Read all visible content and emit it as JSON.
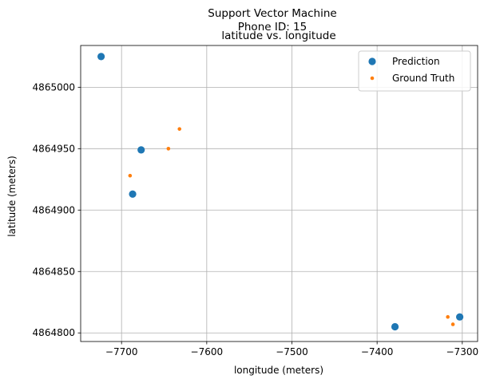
{
  "chart_data": {
    "type": "scatter",
    "title_lines": [
      "Support Vector Machine",
      "Phone ID: 15",
      "latitude vs. longitude"
    ],
    "xlabel": "longitude (meters)",
    "ylabel": "latitude (meters)",
    "xlim": [
      -7748,
      -7282
    ],
    "ylim": [
      4864793,
      4865034
    ],
    "xticks": [
      -7700,
      -7600,
      -7500,
      -7400,
      -7300
    ],
    "xtick_labels": [
      "−7700",
      "−7600",
      "−7500",
      "−7400",
      "−7300"
    ],
    "yticks": [
      4864800,
      4864850,
      4864900,
      4864950,
      4865000
    ],
    "ytick_labels": [
      "4864800",
      "4864850",
      "4864900",
      "4864950",
      "4865000"
    ],
    "grid": true,
    "legend_position": "top-right",
    "series": [
      {
        "name": "Prediction",
        "color": "#1f77b4",
        "marker": "large-circle",
        "points": [
          {
            "x": -7724,
            "y": 4865025
          },
          {
            "x": -7677,
            "y": 4864949
          },
          {
            "x": -7687,
            "y": 4864913
          },
          {
            "x": -7379,
            "y": 4864805
          },
          {
            "x": -7303,
            "y": 4864813
          }
        ]
      },
      {
        "name": "Ground Truth",
        "color": "#ff7f0e",
        "marker": "small-circle",
        "points": [
          {
            "x": -7632,
            "y": 4864966
          },
          {
            "x": -7645,
            "y": 4864950
          },
          {
            "x": -7690,
            "y": 4864928
          },
          {
            "x": -7317,
            "y": 4864813
          },
          {
            "x": -7311,
            "y": 4864807
          }
        ]
      }
    ]
  }
}
